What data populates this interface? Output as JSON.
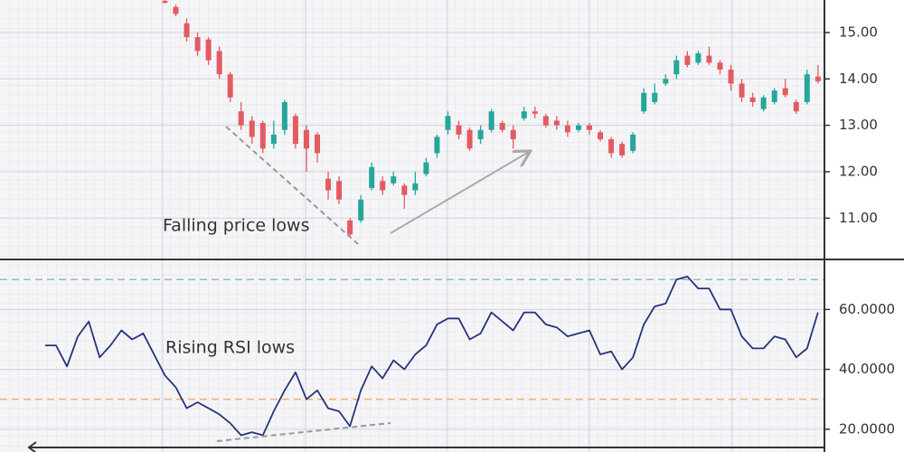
{
  "chart_data": [
    {
      "type": "candlestick",
      "annotation": "Falling price lows",
      "up_color": "#26a69a",
      "down_color": "#e25b61",
      "ylim": [
        10.11,
        15.7
      ],
      "yticks": [
        {
          "value": 11,
          "label": "11.00"
        },
        {
          "value": 12,
          "label": "12.00"
        },
        {
          "value": 13,
          "label": "13.00"
        },
        {
          "value": 14,
          "label": "14.00"
        },
        {
          "value": 15,
          "label": "15.00"
        }
      ],
      "open": [
        null,
        null,
        null,
        null,
        null,
        null,
        null,
        null,
        null,
        null,
        null,
        15.68,
        15.55,
        15.2,
        14.9,
        14.85,
        14.6,
        14.1,
        13.3,
        13.1,
        13.05,
        12.6,
        12.9,
        13.2,
        12.9,
        12.8,
        11.85,
        11.8,
        10.95,
        10.95,
        11.65,
        11.8,
        11.75,
        11.7,
        11.6,
        11.95,
        12.4,
        12.9,
        13.0,
        12.9,
        12.7,
        12.9,
        13.05,
        12.9,
        13.15,
        13.3,
        13.2,
        13.1,
        13.0,
        12.9,
        13.0,
        12.85,
        12.7,
        12.6,
        12.45,
        13.3,
        13.5,
        13.9,
        14.1,
        14.5,
        14.35,
        14.5,
        14.35,
        14.2,
        13.9,
        13.6,
        13.35,
        13.5,
        13.8,
        13.5,
        13.5,
        14.05
      ],
      "high": [
        null,
        null,
        null,
        null,
        null,
        null,
        null,
        null,
        null,
        null,
        null,
        15.72,
        15.6,
        15.3,
        15.0,
        14.9,
        14.7,
        14.15,
        13.5,
        13.2,
        13.1,
        13.1,
        13.55,
        13.25,
        13.0,
        12.85,
        12.0,
        11.9,
        11.0,
        11.5,
        12.2,
        11.9,
        12.0,
        11.75,
        12.0,
        12.3,
        12.8,
        13.3,
        13.1,
        12.95,
        13.0,
        13.35,
        13.1,
        13.0,
        13.4,
        13.4,
        13.25,
        13.2,
        13.1,
        13.05,
        13.05,
        12.9,
        12.75,
        12.65,
        12.85,
        13.8,
        13.9,
        14.1,
        14.5,
        14.6,
        14.6,
        14.7,
        14.4,
        14.3,
        14.0,
        13.7,
        13.65,
        13.8,
        14.0,
        13.55,
        14.2,
        14.3
      ],
      "low": [
        null,
        null,
        null,
        null,
        null,
        null,
        null,
        null,
        null,
        null,
        null,
        15.62,
        15.35,
        14.8,
        14.5,
        14.3,
        14.0,
        13.5,
        12.9,
        12.6,
        12.4,
        12.5,
        12.8,
        12.5,
        12.0,
        12.2,
        11.4,
        11.3,
        10.6,
        10.9,
        11.6,
        11.5,
        11.7,
        11.2,
        11.5,
        11.9,
        12.3,
        12.8,
        12.7,
        12.45,
        12.6,
        12.85,
        12.85,
        12.5,
        13.1,
        13.15,
        12.95,
        12.9,
        12.75,
        12.85,
        12.8,
        12.65,
        12.3,
        12.3,
        12.4,
        13.25,
        13.45,
        13.85,
        14.0,
        14.25,
        14.3,
        14.3,
        14.1,
        13.75,
        13.5,
        13.4,
        13.3,
        13.45,
        13.6,
        13.25,
        13.45,
        13.9
      ],
      "close": [
        null,
        null,
        null,
        null,
        null,
        null,
        null,
        null,
        null,
        null,
        null,
        15.64,
        15.4,
        14.9,
        14.6,
        14.4,
        14.1,
        13.6,
        13.0,
        12.75,
        12.5,
        12.8,
        13.5,
        12.6,
        12.5,
        12.4,
        11.6,
        11.4,
        10.65,
        11.4,
        12.1,
        11.6,
        11.9,
        11.5,
        11.75,
        12.2,
        12.75,
        13.2,
        12.8,
        12.5,
        12.9,
        13.3,
        12.9,
        12.7,
        13.3,
        13.25,
        13.0,
        13.0,
        12.85,
        13.0,
        12.9,
        12.7,
        12.4,
        12.35,
        12.8,
        13.7,
        13.7,
        14.0,
        14.4,
        14.3,
        14.55,
        14.35,
        14.2,
        13.9,
        13.6,
        13.5,
        13.6,
        13.75,
        13.65,
        13.3,
        14.1,
        13.95
      ]
    },
    {
      "type": "line",
      "annotation": "Rising RSI lows",
      "color": "#27347a",
      "ylim": [
        12.4,
        75.8
      ],
      "yticks": [
        {
          "value": 20,
          "label": "20.0000"
        },
        {
          "value": 40,
          "label": "40.0000"
        },
        {
          "value": 60,
          "label": "60.0000"
        }
      ],
      "levels": [
        {
          "value": 70,
          "color": "#8fbcc4"
        },
        {
          "value": 30,
          "color": "#f2b46e"
        }
      ],
      "values": [
        48,
        48,
        41,
        51,
        56,
        44,
        48,
        53,
        50,
        52,
        45,
        38,
        34,
        27,
        29,
        27,
        25,
        22,
        18,
        19,
        18,
        26,
        33,
        39,
        30,
        33,
        27,
        26,
        21,
        33,
        41,
        37,
        43,
        40,
        45,
        48,
        55,
        57,
        57,
        50,
        52,
        59,
        56,
        53,
        59,
        59,
        55,
        54,
        51,
        52,
        53,
        45,
        46,
        40,
        44,
        55,
        61,
        62,
        70,
        71,
        67,
        67,
        60,
        60,
        51,
        47,
        47,
        51,
        50,
        44,
        47,
        59
      ]
    }
  ]
}
